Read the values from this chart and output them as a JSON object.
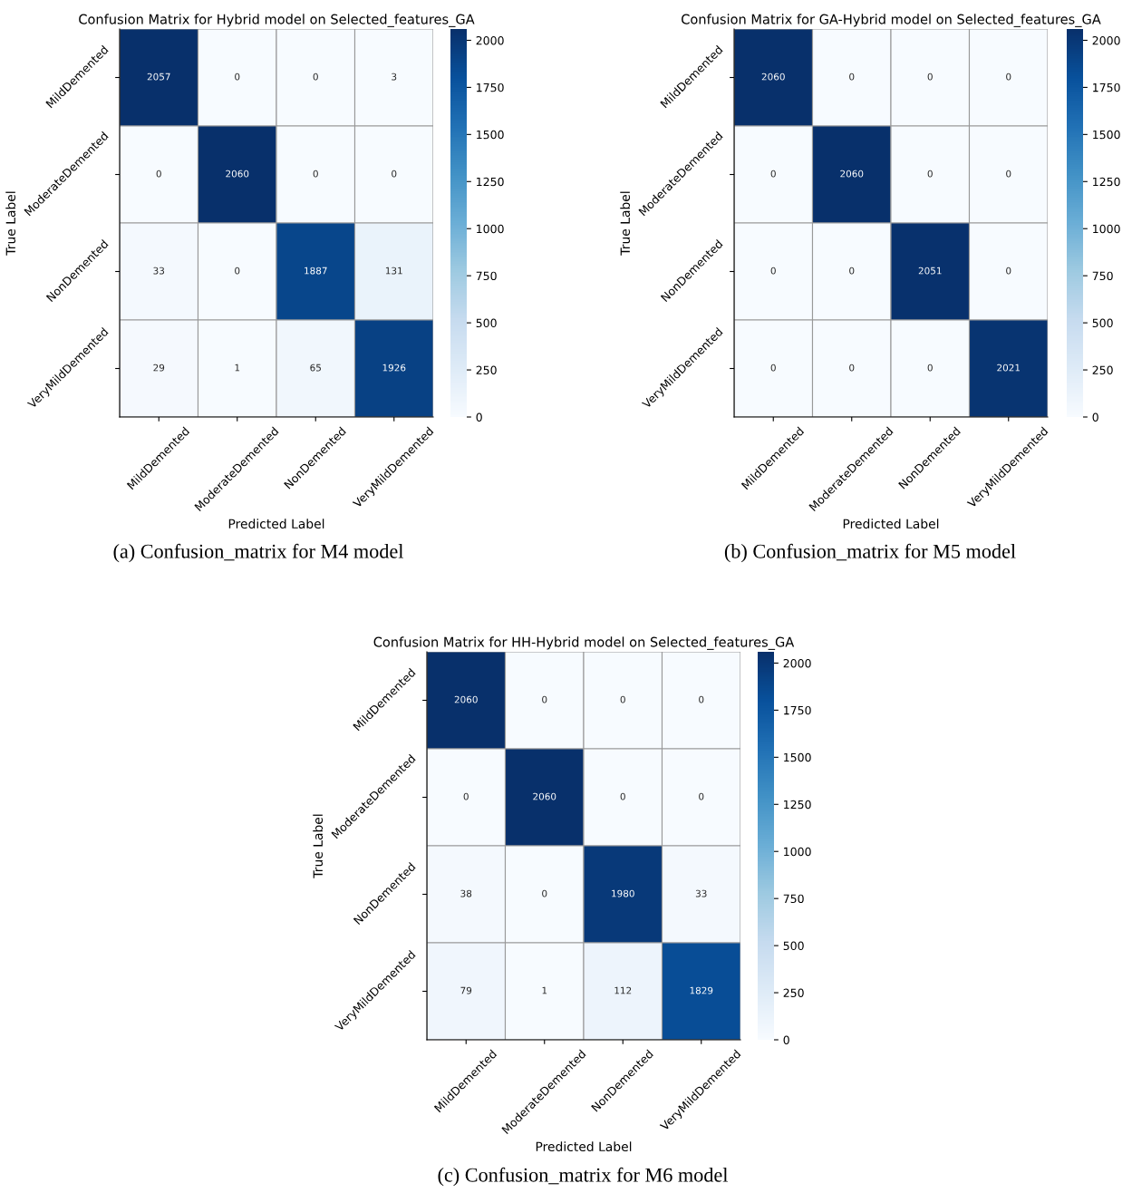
{
  "chart_data": [
    {
      "type": "heatmap",
      "title": "Confusion Matrix for Hybrid model on Selected_features_GA",
      "xlabel": "Predicted Label",
      "ylabel": "True Label",
      "categories": [
        "MildDemented",
        "ModerateDemented",
        "NonDemented",
        "VeryMildDemented"
      ],
      "y_categories": [
        "MildDemented",
        "ModerateDemented",
        "NonDemented",
        "VeryMildDemented"
      ],
      "cells": [
        [
          2057,
          0,
          0,
          3
        ],
        [
          0,
          2060,
          0,
          0
        ],
        [
          33,
          0,
          1887,
          131
        ],
        [
          29,
          1,
          65,
          1926
        ]
      ],
      "clim": [
        0,
        2060
      ],
      "cticks": [
        0,
        250,
        500,
        750,
        1000,
        1250,
        1500,
        1750,
        2000
      ],
      "data_labels": true,
      "annotations": [
        "(a) Confusion_matrix for M4 model"
      ]
    },
    {
      "type": "heatmap",
      "title": "Confusion Matrix for GA-Hybrid model on Selected_features_GA",
      "xlabel": "Predicted Label",
      "ylabel": "True Label",
      "categories": [
        "MildDemented",
        "ModerateDemented",
        "NonDemented",
        "VeryMildDemented"
      ],
      "y_categories": [
        "MildDemented",
        "ModerateDemented",
        "NonDemented",
        "VeryMildDemented"
      ],
      "cells": [
        [
          2060,
          0,
          0,
          0
        ],
        [
          0,
          2060,
          0,
          0
        ],
        [
          0,
          0,
          2051,
          0
        ],
        [
          0,
          0,
          0,
          2021
        ]
      ],
      "clim": [
        0,
        2060
      ],
      "cticks": [
        0,
        250,
        500,
        750,
        1000,
        1250,
        1500,
        1750,
        2000
      ],
      "data_labels": true,
      "annotations": [
        "(b) Confusion_matrix for M5 model"
      ]
    },
    {
      "type": "heatmap",
      "title": "Confusion Matrix for HH-Hybrid model on Selected_features_GA",
      "xlabel": "Predicted Label",
      "ylabel": "True Label",
      "categories": [
        "MildDemented",
        "ModerateDemented",
        "NonDemented",
        "VeryMildDemented"
      ],
      "y_categories": [
        "MildDemented",
        "ModerateDemented",
        "NonDemented",
        "VeryMildDemented"
      ],
      "cells": [
        [
          2060,
          0,
          0,
          0
        ],
        [
          0,
          2060,
          0,
          0
        ],
        [
          38,
          0,
          1980,
          33
        ],
        [
          79,
          1,
          112,
          1829
        ]
      ],
      "clim": [
        0,
        2060
      ],
      "cticks": [
        0,
        250,
        500,
        750,
        1000,
        1250,
        1500,
        1750,
        2000
      ],
      "data_labels": true,
      "annotations": [
        "(c) Confusion_matrix for M6 model"
      ]
    }
  ]
}
